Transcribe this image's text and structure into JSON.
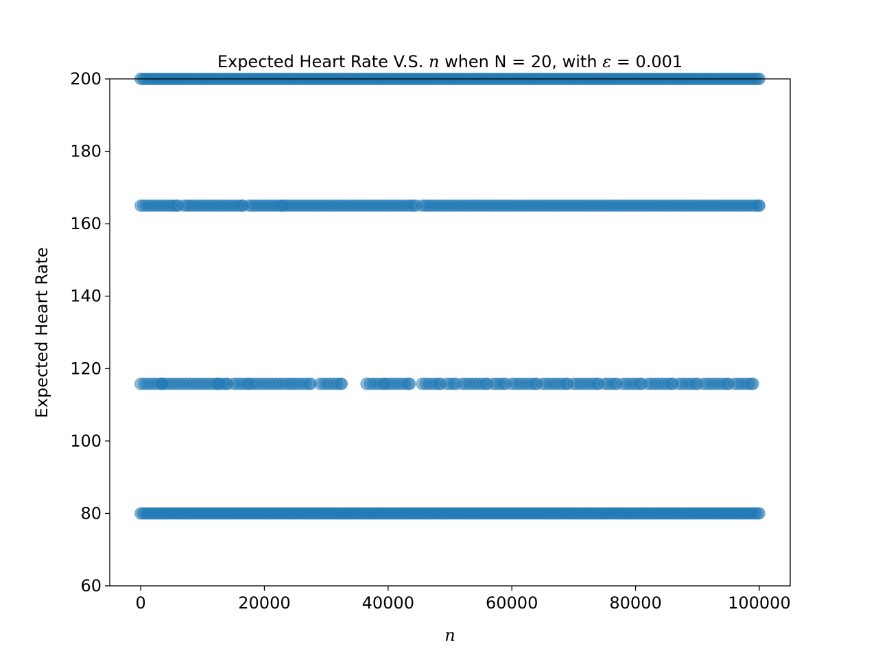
{
  "chart_data": {
    "type": "scatter",
    "title": {
      "prefix": "Expected Heart Rate V.S. ",
      "var": "n",
      "suffix": " when N = 20, with ",
      "epsilon": "ε",
      "eq": " = 0.001"
    },
    "xlabel": "n",
    "ylabel": "Expected Heart Rate",
    "xlim": [
      -5000,
      105000
    ],
    "ylim": [
      60,
      200
    ],
    "xticks": [
      0,
      20000,
      40000,
      60000,
      80000,
      100000
    ],
    "yticks": [
      60,
      80,
      100,
      120,
      140,
      160,
      180,
      200
    ],
    "grid": false,
    "legend": "none",
    "marker_color": "#1f77b4",
    "marker_alpha": 0.5,
    "bands": [
      {
        "y": 200,
        "x_range": [
          0,
          100000
        ],
        "density": "continuous"
      },
      {
        "y": 165,
        "x_range": [
          0,
          100000
        ],
        "density": "dense"
      },
      {
        "y": 115.8,
        "x_range": [
          0,
          100000
        ],
        "density": "sparse"
      },
      {
        "y": 80,
        "x_range": [
          0,
          100000
        ],
        "density": "continuous"
      }
    ],
    "band_segments": {
      "165": [
        [
          0,
          6000
        ],
        [
          7000,
          16500
        ],
        [
          17500,
          23000
        ],
        [
          23500,
          44500
        ],
        [
          45500,
          100000
        ]
      ],
      "115.8": [
        [
          0,
          3500
        ],
        [
          3500,
          12500
        ],
        [
          12800,
          14000
        ],
        [
          15000,
          17500
        ],
        [
          18000,
          24500
        ],
        [
          25000,
          27500
        ],
        [
          29000,
          32500
        ],
        [
          36500,
          39500
        ],
        [
          40000,
          43500
        ],
        [
          45500,
          48500
        ],
        [
          49500,
          51000
        ],
        [
          52000,
          56000
        ],
        [
          57000,
          59000
        ],
        [
          60000,
          64000
        ],
        [
          65000,
          69000
        ],
        [
          70000,
          74000
        ],
        [
          75000,
          77000
        ],
        [
          78000,
          81000
        ],
        [
          82000,
          86000
        ],
        [
          87000,
          90000
        ],
        [
          91000,
          95000
        ],
        [
          96000,
          99000
        ]
      ]
    }
  }
}
